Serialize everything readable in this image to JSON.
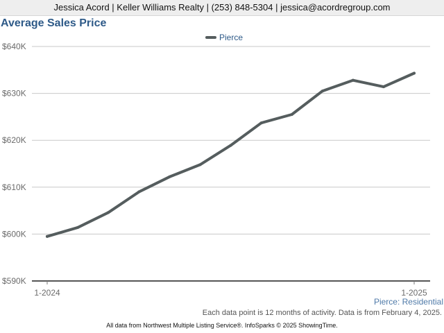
{
  "header": {
    "contact": "Jessica Acord | Keller Williams Realty | (253) 848-5304 | jessica@acordregroup.com"
  },
  "chart_data": {
    "type": "line",
    "title": "Average Sales Price",
    "x": [
      "1-2024",
      "2-2024",
      "3-2024",
      "4-2024",
      "5-2024",
      "6-2024",
      "7-2024",
      "8-2024",
      "9-2024",
      "10-2024",
      "11-2024",
      "12-2024",
      "1-2025"
    ],
    "x_tick_labels": [
      "1-2024",
      "1-2025"
    ],
    "series": [
      {
        "name": "Pierce",
        "color": "#555d5e",
        "values": [
          599500,
          601400,
          604600,
          609000,
          612200,
          614800,
          618900,
          623700,
          625500,
          630500,
          632800,
          631400,
          634300
        ]
      }
    ],
    "y_ticks": [
      "$590K",
      "$600K",
      "$610K",
      "$620K",
      "$630K",
      "$640K"
    ],
    "ylim": [
      590000,
      640000
    ],
    "grid": true,
    "legend_position": "top-center",
    "xlabel": "",
    "ylabel": ""
  },
  "footer": {
    "region": "Pierce: Residential",
    "note": "Each data point is 12 months of activity. Data is from February 4, 2025.",
    "source": "All data from Northwest Multiple Listing Service®. InfoSparks © 2025 ShowingTime."
  }
}
